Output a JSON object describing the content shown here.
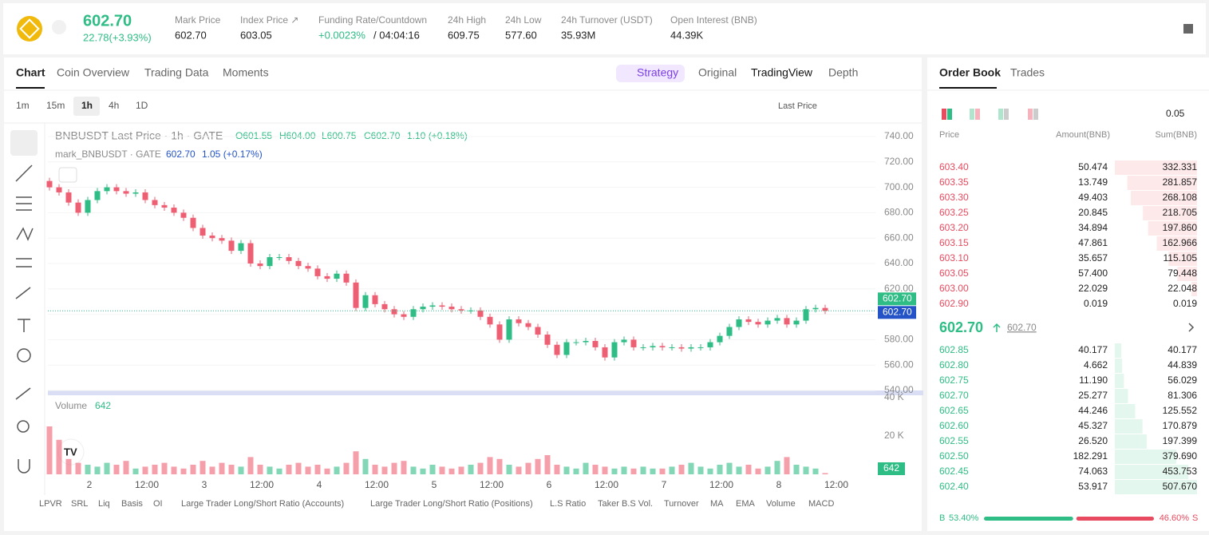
{
  "header": {
    "price": "602.70",
    "change": "22.78(+3.93%)",
    "stats": [
      {
        "label": "Mark Price",
        "value": "602.70"
      },
      {
        "label": "Index Price ↗",
        "value": "603.05"
      },
      {
        "label": "Funding Rate/Countdown",
        "value": "+0.0023%",
        "extra": "/ 04:04:16"
      },
      {
        "label": "24h High",
        "value": "609.75"
      },
      {
        "label": "24h Low",
        "value": "577.60"
      },
      {
        "label": "24h Turnover (USDT)",
        "value": "35.93M"
      },
      {
        "label": "Open Interest (BNB)",
        "value": "44.39K"
      }
    ]
  },
  "tabs": [
    "Chart",
    "Coin Overview",
    "Trading Data",
    "Moments"
  ],
  "views": [
    "Strategy",
    "Original",
    "TradingView",
    "Depth"
  ],
  "intervals": [
    "1m",
    "15m",
    "1h",
    "4h",
    "1D"
  ],
  "price_source": "Last Price",
  "legend": {
    "symbol": "BNBUSDT Last Price · 1h · GATE",
    "ohlc": [
      "O601.55",
      "H604.00",
      "L600.75",
      "C602.70",
      "1.10 (+0.18%)"
    ],
    "mark": "mark_BNBUSDT · GATE",
    "mark_price": "602.70",
    "mark_change": "1.05 (+0.17%)"
  },
  "chart_data": {
    "type": "candlestick",
    "closes": [
      700,
      696,
      688,
      680,
      690,
      697,
      700,
      697,
      695,
      696,
      690,
      686,
      684,
      680,
      676,
      668,
      662,
      660,
      658,
      650,
      656,
      640,
      638,
      645,
      645,
      642,
      638,
      636,
      630,
      628,
      632,
      625,
      605,
      615,
      608,
      604,
      600,
      598,
      604,
      606,
      607,
      606,
      604,
      603,
      603,
      598,
      592,
      580,
      596,
      593,
      590,
      584,
      576,
      568,
      578,
      578,
      579,
      574,
      566,
      578,
      580,
      574,
      574,
      575,
      574,
      574,
      573,
      574,
      574,
      578,
      583,
      590,
      596,
      594,
      592,
      595,
      597,
      592,
      595,
      604,
      605,
      602.7
    ],
    "volumes": [
      25,
      18,
      8,
      6,
      5,
      4,
      6,
      5,
      7,
      3,
      4,
      5,
      6,
      4,
      3,
      5,
      7,
      4,
      6,
      5,
      4,
      9,
      5,
      4,
      3,
      5,
      6,
      4,
      5,
      3,
      4,
      6,
      12,
      8,
      5,
      4,
      6,
      7,
      4,
      3,
      5,
      4,
      3,
      4,
      5,
      6,
      9,
      8,
      5,
      4,
      6,
      8,
      10,
      5,
      4,
      3,
      6,
      5,
      4,
      3,
      4,
      3,
      4,
      3,
      3,
      4,
      5,
      6,
      4,
      3,
      5,
      6,
      4,
      5,
      3,
      4,
      7,
      9,
      5,
      4,
      3,
      0.642
    ],
    "ylim": [
      540,
      740
    ],
    "yticks": [
      {
        "value": 740,
        "label": "740.00"
      },
      {
        "value": 720,
        "label": "720.00"
      },
      {
        "value": 700,
        "label": "700.00"
      },
      {
        "value": 680,
        "label": "680.00"
      },
      {
        "value": 660,
        "label": "660.00"
      },
      {
        "value": 640,
        "label": "640.00"
      },
      {
        "value": 620,
        "label": "620.00"
      },
      {
        "value": 600,
        "label": "600.00"
      },
      {
        "value": 580,
        "label": "580.00"
      },
      {
        "value": 560,
        "label": "560.00"
      },
      {
        "value": 540,
        "label": "540.00"
      }
    ],
    "vol_ylim": [
      0,
      40
    ],
    "vol_yticks": [
      {
        "value": 40,
        "label": "40 K"
      },
      {
        "value": 20,
        "label": "20 K"
      }
    ],
    "last": {
      "value": 602.7,
      "label": "602.70"
    },
    "vol_title": "Volume",
    "vol_last": "642",
    "xlabels": [
      "2",
      "12:00",
      "3",
      "12:00",
      "4",
      "12:00",
      "5",
      "12:00",
      "6",
      "12:00",
      "7",
      "12:00",
      "8",
      "12:00"
    ],
    "up_color": "#2ebd85",
    "down_color": "#ef5f73"
  },
  "indicators": [
    "LPVR",
    "SRL",
    "Liq",
    "Basis",
    "OI",
    "Large Trader Long/Short Ratio (Accounts)",
    "Large Trader Long/Short Ratio (Positions)",
    "L.S Ratio",
    "Taker B.S Vol.",
    "Turnover",
    "MA",
    "EMA",
    "Volume",
    "MACD"
  ],
  "orderbook": {
    "tabs": [
      "Order Book",
      "Trades"
    ],
    "step": "0.05",
    "columns": [
      "Price",
      "Amount(BNB)",
      "Sum(BNB)"
    ],
    "asks": [
      [
        "603.40",
        "50.474",
        332.331
      ],
      [
        "603.35",
        "13.749",
        281.857
      ],
      [
        "603.30",
        "49.403",
        268.108
      ],
      [
        "603.25",
        "20.845",
        218.705
      ],
      [
        "603.20",
        "34.894",
        197.86
      ],
      [
        "603.15",
        "47.861",
        162.966
      ],
      [
        "603.10",
        "35.657",
        115.105
      ],
      [
        "603.05",
        "57.400",
        79.448
      ],
      [
        "603.00",
        "22.029",
        22.048
      ],
      [
        "602.90",
        "0.019",
        0.019
      ]
    ],
    "ask_sum_labels": [
      "332.331",
      "281.857",
      "268.108",
      "218.705",
      "197.860",
      "162.966",
      "115.105",
      "79.448",
      "22.048",
      "0.019"
    ],
    "mid": "602.70",
    "mark": "602.70",
    "bids": [
      [
        "602.85",
        "40.177",
        40.177
      ],
      [
        "602.80",
        "4.662",
        44.839
      ],
      [
        "602.75",
        "11.190",
        56.029
      ],
      [
        "602.70",
        "25.277",
        81.306
      ],
      [
        "602.65",
        "44.246",
        125.552
      ],
      [
        "602.60",
        "45.327",
        170.879
      ],
      [
        "602.55",
        "26.520",
        197.399
      ],
      [
        "602.50",
        "182.291",
        379.69
      ],
      [
        "602.45",
        "74.063",
        453.753
      ],
      [
        "602.40",
        "53.917",
        507.67
      ]
    ],
    "bid_sum_labels": [
      "40.177",
      "44.839",
      "56.029",
      "81.306",
      "125.552",
      "170.879",
      "197.399",
      "379.690",
      "453.753",
      "507.670"
    ],
    "ratio": {
      "buy_letter": "B",
      "buy": 53.4,
      "buy_label": "53.40%",
      "sell": 46.6,
      "sell_label": "46.60%",
      "sell_letter": "S"
    }
  }
}
